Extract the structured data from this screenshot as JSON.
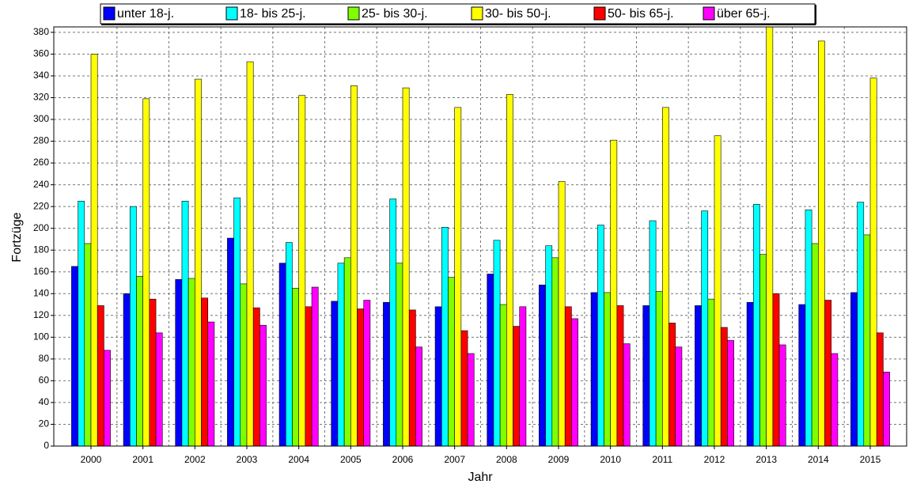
{
  "chart_data": {
    "type": "bar",
    "x_label": "Jahr",
    "y_label": "Fortzüge",
    "categories": [
      "2000",
      "2001",
      "2002",
      "2003",
      "2004",
      "2005",
      "2006",
      "2007",
      "2008",
      "2009",
      "2010",
      "2011",
      "2012",
      "2013",
      "2014",
      "2015"
    ],
    "series": [
      {
        "name": "unter 18-j.",
        "color": "#0000ff",
        "values": [
          165,
          140,
          153,
          191,
          168,
          133,
          132,
          128,
          158,
          148,
          141,
          129,
          129,
          132,
          130,
          141
        ]
      },
      {
        "name": "18- bis 25-j.",
        "color": "#00ffff",
        "values": [
          225,
          220,
          225,
          228,
          187,
          168,
          227,
          201,
          189,
          184,
          203,
          207,
          216,
          222,
          217,
          224
        ]
      },
      {
        "name": "25- bis 30-j.",
        "color": "#80ff00",
        "values": [
          186,
          156,
          154,
          149,
          145,
          173,
          168,
          155,
          130,
          173,
          141,
          142,
          135,
          176,
          186,
          194
        ]
      },
      {
        "name": "30- bis 50-j.",
        "color": "#ffff00",
        "values": [
          360,
          319,
          337,
          353,
          322,
          331,
          329,
          311,
          323,
          243,
          281,
          311,
          285,
          385,
          372,
          338
        ]
      },
      {
        "name": "50- bis 65-j.",
        "color": "#ff0000",
        "values": [
          129,
          135,
          136,
          127,
          128,
          126,
          125,
          106,
          110,
          128,
          129,
          113,
          109,
          140,
          134,
          104
        ]
      },
      {
        "name": "über 65-j.",
        "color": "#ff00ff",
        "values": [
          88,
          104,
          114,
          111,
          146,
          134,
          91,
          85,
          128,
          117,
          94,
          91,
          97,
          93,
          85,
          68
        ]
      }
    ],
    "ylim": [
      0,
      385
    ],
    "yticks": [
      0,
      20,
      40,
      60,
      80,
      100,
      120,
      140,
      160,
      180,
      200,
      220,
      240,
      260,
      280,
      300,
      320,
      340,
      360,
      380
    ],
    "grid": true
  }
}
